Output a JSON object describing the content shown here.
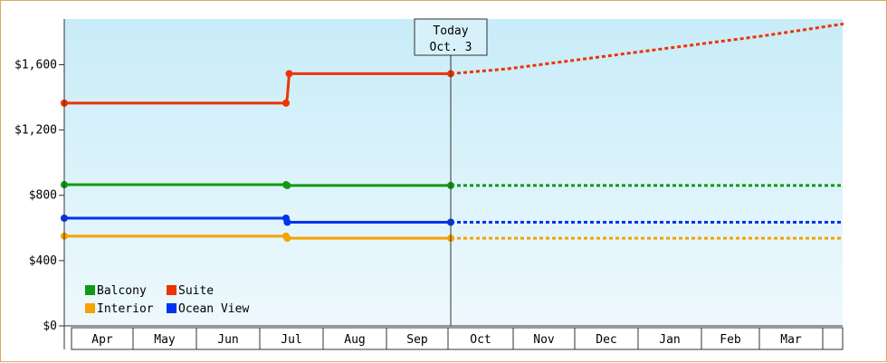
{
  "chart_data": {
    "type": "line",
    "today_label": [
      "Today",
      "Oct. 3"
    ],
    "months": [
      "Apr",
      "May",
      "Jun",
      "Jul",
      "Aug",
      "Sep",
      "Oct",
      "Nov",
      "Dec",
      "Jan",
      "Feb",
      "Mar"
    ],
    "y_ticks": [
      "$0",
      "$400",
      "$800",
      "$1,200",
      "$1,600"
    ],
    "y_tick_values": [
      0,
      400,
      800,
      1200,
      1600
    ],
    "ylim": [
      0,
      1880
    ],
    "grid": false,
    "legend_position": "bottom-left",
    "series": [
      {
        "name": "Balcony",
        "color": "#119911",
        "history": [
          [
            0,
            865
          ],
          [
            3.5,
            865
          ],
          [
            3.5,
            860
          ],
          [
            6.1,
            860
          ]
        ],
        "forecast": [
          [
            6.1,
            860
          ],
          [
            12.3,
            860
          ]
        ]
      },
      {
        "name": "Suite",
        "color": "#ee3300",
        "history": [
          [
            0,
            1365
          ],
          [
            3.5,
            1365
          ],
          [
            3.52,
            1400
          ],
          [
            3.55,
            1545
          ],
          [
            6.1,
            1545
          ]
        ],
        "forecast": [
          [
            6.1,
            1545
          ],
          [
            7.0,
            1575
          ],
          [
            8.0,
            1625
          ],
          [
            9.0,
            1675
          ],
          [
            10.0,
            1725
          ],
          [
            11.0,
            1775
          ],
          [
            12.3,
            1850
          ]
        ]
      },
      {
        "name": "Interior",
        "color": "#f5a300",
        "history": [
          [
            0,
            550
          ],
          [
            3.5,
            550
          ],
          [
            3.5,
            537
          ],
          [
            6.1,
            537
          ]
        ],
        "forecast": [
          [
            6.1,
            537
          ],
          [
            12.3,
            537
          ]
        ]
      },
      {
        "name": "Ocean View",
        "color": "#0033ee",
        "history": [
          [
            0,
            660
          ],
          [
            3.5,
            660
          ],
          [
            3.5,
            635
          ],
          [
            6.1,
            635
          ]
        ],
        "forecast": [
          [
            6.1,
            635
          ],
          [
            12.3,
            635
          ]
        ]
      }
    ],
    "markers": [
      {
        "series": "Balcony",
        "points": [
          [
            0,
            865
          ],
          [
            3.5,
            865
          ],
          [
            3.52,
            860
          ],
          [
            6.1,
            860
          ]
        ]
      },
      {
        "series": "Suite",
        "points": [
          [
            0,
            1365
          ],
          [
            3.5,
            1365
          ],
          [
            3.55,
            1545
          ],
          [
            6.1,
            1545
          ]
        ]
      },
      {
        "series": "Interior",
        "points": [
          [
            0,
            550
          ],
          [
            3.5,
            550
          ],
          [
            3.52,
            537
          ],
          [
            6.1,
            537
          ]
        ]
      },
      {
        "series": "Ocean View",
        "points": [
          [
            0,
            660
          ],
          [
            3.5,
            660
          ],
          [
            3.52,
            635
          ],
          [
            6.1,
            635
          ]
        ]
      }
    ],
    "legend_order": [
      "Balcony",
      "Suite",
      "Interior",
      "Ocean View"
    ]
  }
}
